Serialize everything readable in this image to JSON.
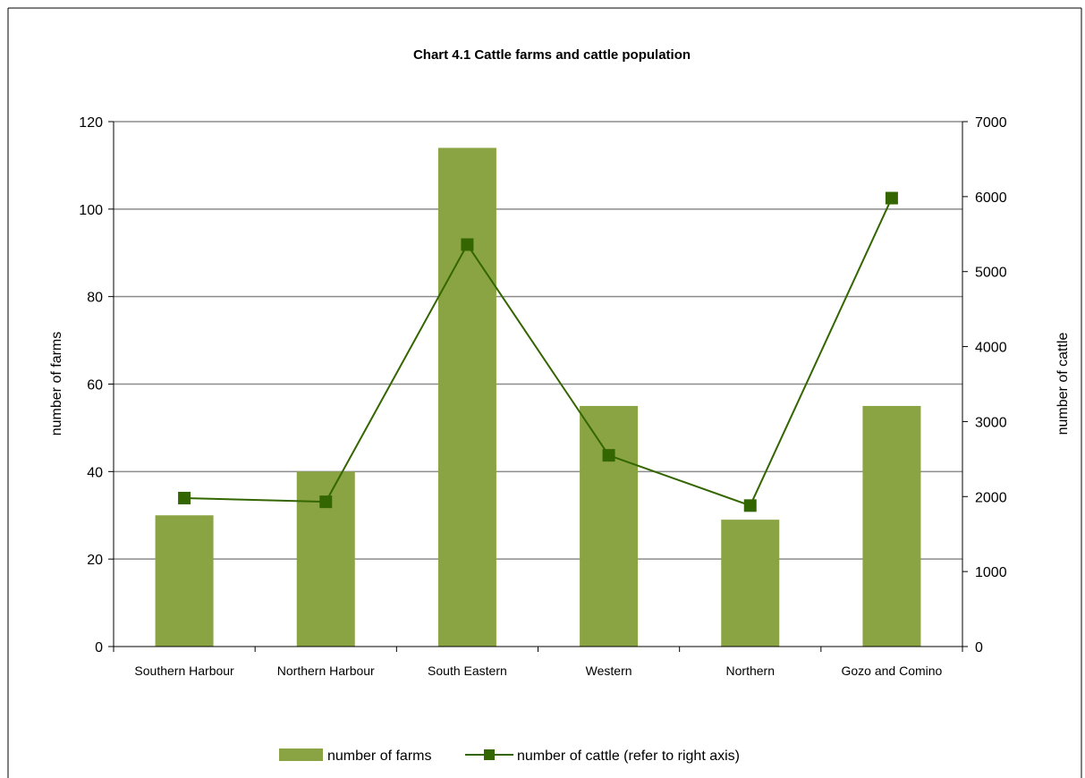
{
  "chart_data": {
    "type": "bar",
    "title": "Chart 4.1  Cattle farms and cattle population",
    "categories": [
      "Southern Harbour",
      "Northern Harbour",
      "South Eastern",
      "Western",
      "Northern",
      "Gozo and Comino"
    ],
    "series": [
      {
        "name": "number of farms",
        "type": "bar",
        "axis": "left",
        "color": "#8BA443",
        "values": [
          30,
          40,
          114,
          55,
          29,
          55
        ]
      },
      {
        "name": "number of cattle (refer to right axis)",
        "type": "line",
        "axis": "right",
        "color": "#336600",
        "marker": "square",
        "values": [
          1980,
          1930,
          5360,
          2550,
          1880,
          5980
        ]
      }
    ],
    "ylabel": "number of farms",
    "ylim": [
      0,
      120
    ],
    "yticks": [
      0,
      20,
      40,
      60,
      80,
      100,
      120
    ],
    "y2label": "number of cattle",
    "y2lim": [
      0,
      7000
    ],
    "y2ticks": [
      0,
      1000,
      2000,
      3000,
      4000,
      5000,
      6000,
      7000
    ],
    "grid": true,
    "legend_position": "bottom"
  }
}
